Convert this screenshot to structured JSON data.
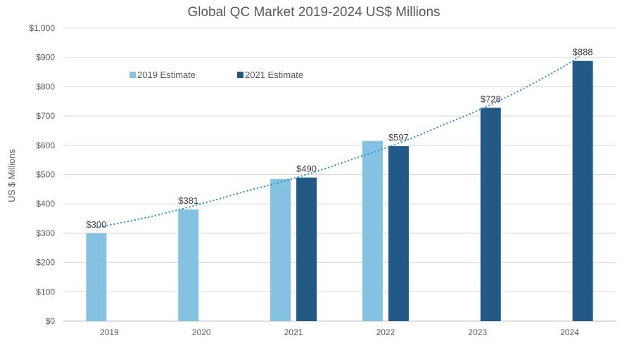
{
  "chart_data": {
    "type": "bar",
    "title": "Global QC Market  2019-2024 US$ Millions",
    "xlabel": "",
    "ylabel": "US $ Millions",
    "ylim": [
      0,
      1000
    ],
    "yticks": [
      "$0",
      "$100",
      "$200",
      "$300",
      "$400",
      "$500",
      "$600",
      "$700",
      "$800",
      "$900",
      "$1,000"
    ],
    "categories": [
      "2019",
      "2020",
      "2021",
      "2022",
      "2023",
      "2024"
    ],
    "series": [
      {
        "name": "2019 Estimate",
        "color": "#85C1E0",
        "values": [
          300,
          381,
          485,
          615,
          null,
          null
        ],
        "labels": [
          "$300",
          "$381",
          "",
          "",
          "",
          ""
        ]
      },
      {
        "name": "2021 Estimate",
        "color": "#215A85",
        "values": [
          null,
          null,
          490,
          597,
          728,
          888
        ],
        "labels": [
          "",
          "",
          "$490",
          "$597",
          "$728",
          "$888"
        ]
      }
    ],
    "trendline": {
      "style": "dotted",
      "color": "#1F8FC4"
    },
    "grid": true,
    "legend_position": "top-left"
  }
}
